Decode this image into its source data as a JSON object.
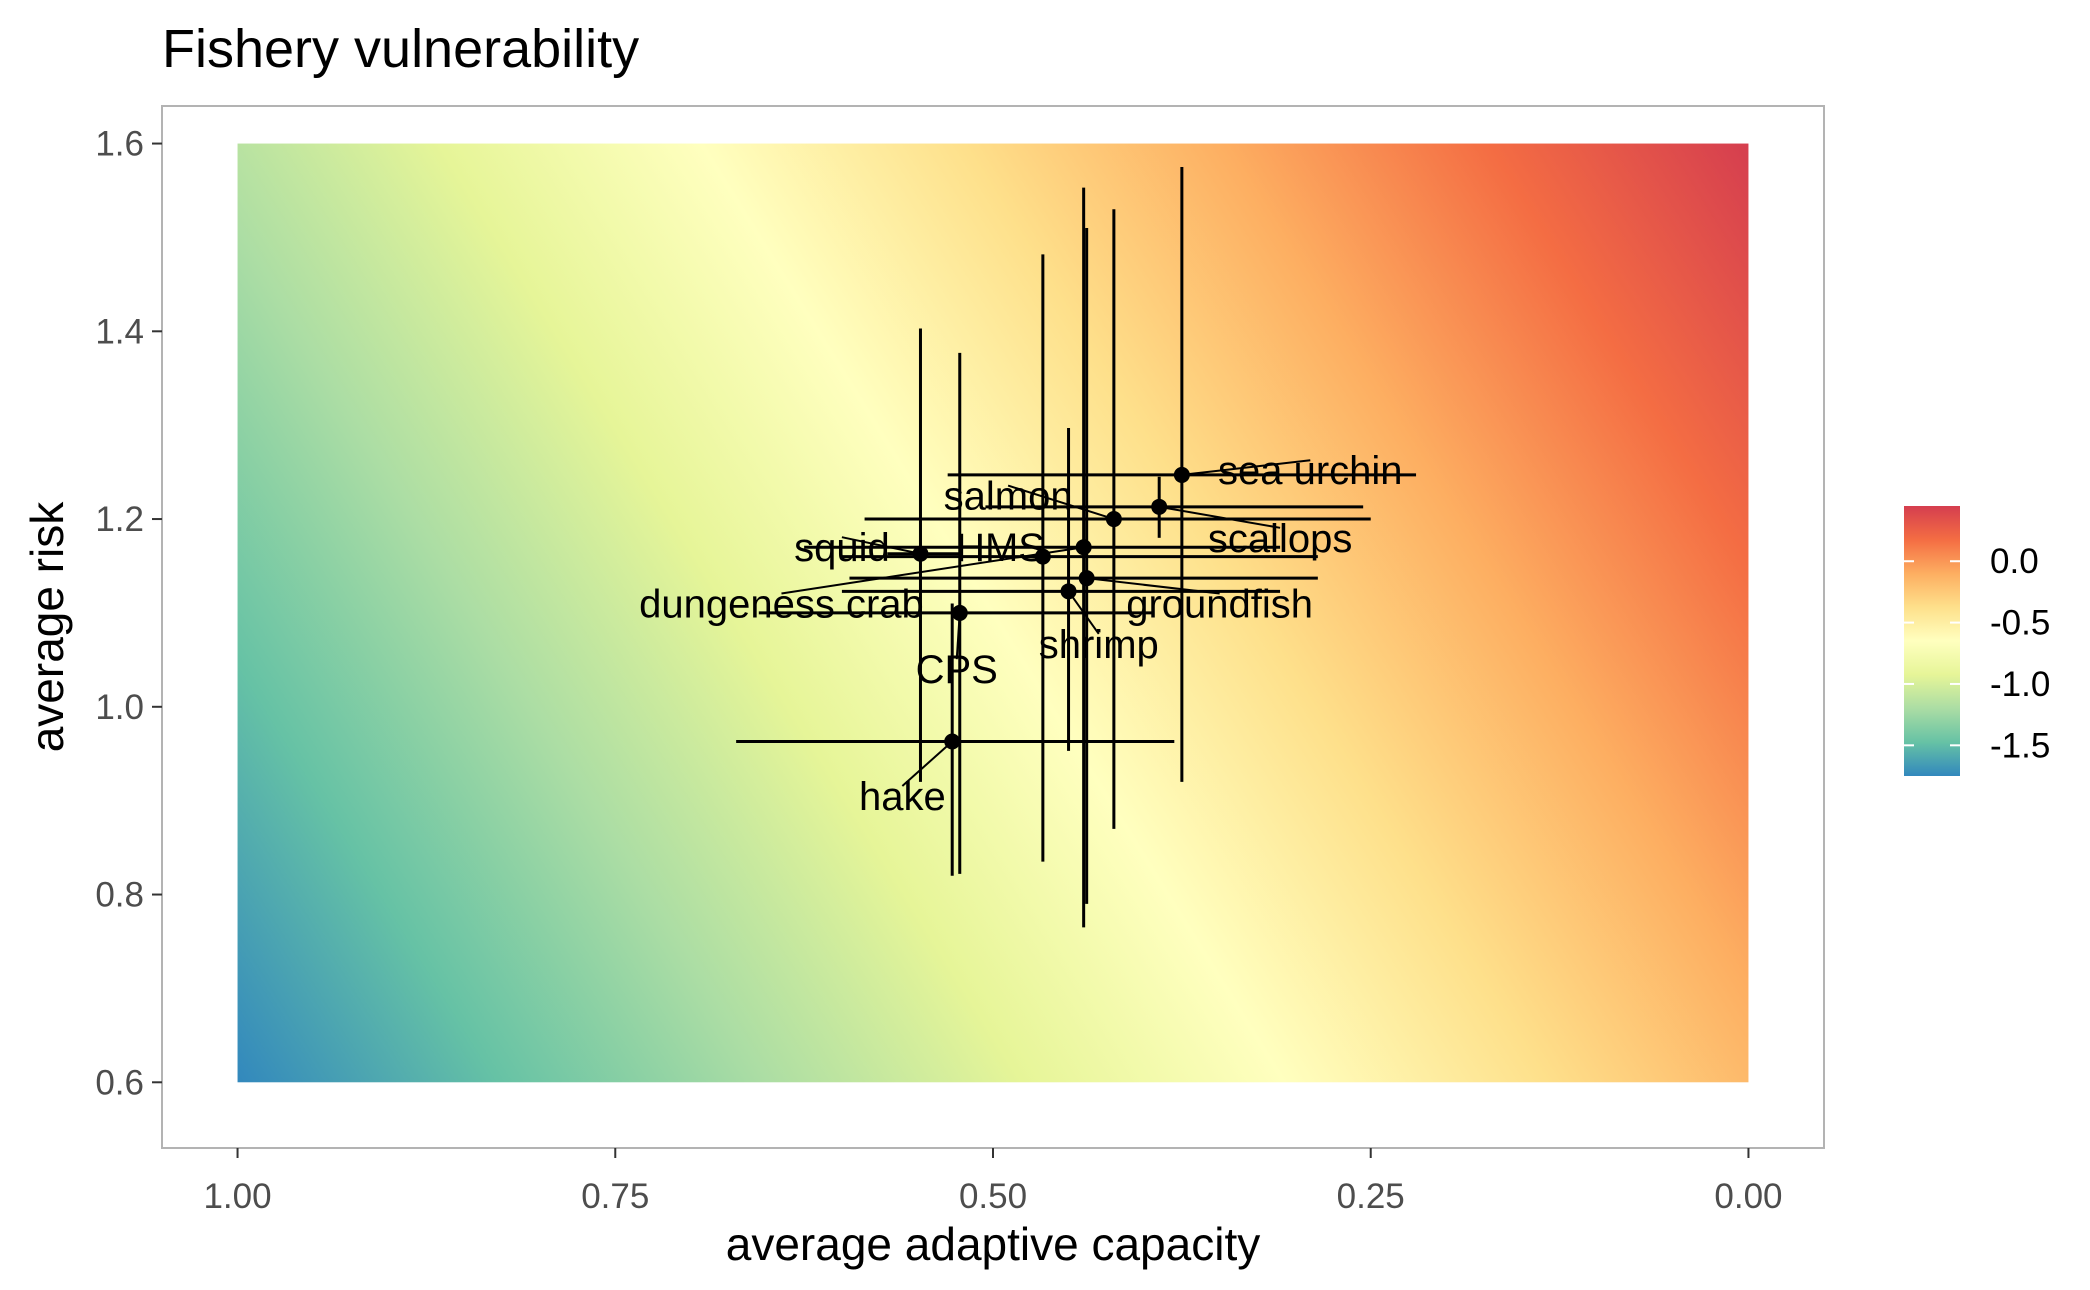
{
  "chart_data": {
    "type": "scatter",
    "title": "Fishery vulnerability",
    "xlabel": "average adaptive capacity",
    "ylabel": "average risk",
    "xlim": [
      1.05,
      -0.05
    ],
    "x_reversed": true,
    "ylim": [
      0.53,
      1.64
    ],
    "xticks": [
      1.0,
      0.75,
      0.5,
      0.25,
      0.0
    ],
    "xtick_labels": [
      "1.00",
      "0.75",
      "0.50",
      "0.25",
      "0.00"
    ],
    "yticks": [
      0.6,
      0.8,
      1.0,
      1.2,
      1.4,
      1.6
    ],
    "ytick_labels": [
      "0.6",
      "0.8",
      "1.0",
      "1.2",
      "1.4",
      "1.6"
    ],
    "grid": true,
    "legend_placement": "right",
    "background_gradient": {
      "x_range": [
        0.0,
        1.0
      ],
      "y_range": [
        0.6,
        1.6
      ],
      "value_at_corners": {
        "x0_ytop": 0.45,
        "x1_ybottom": -1.75
      },
      "colorbar_ticks": [
        0.0,
        -0.5,
        -1.0,
        -1.5
      ],
      "colorbar_tick_labels": [
        "0.0",
        "-0.5",
        "-1.0",
        "-1.5"
      ],
      "colorbar_range": [
        -1.75,
        0.45
      ],
      "palette": [
        "#3288bd",
        "#66c2a5",
        "#abdda4",
        "#e6f598",
        "#ffffbf",
        "#fee08b",
        "#fdae61",
        "#f46d43",
        "#d53e4f"
      ]
    },
    "points": [
      {
        "name": "sea urchin",
        "x": 0.375,
        "y": 1.247,
        "xmin": 0.22,
        "xmax": 0.53,
        "ymin": 0.92,
        "ymax": 1.575,
        "label_x": 0.29,
        "label_y": 1.252
      },
      {
        "name": "salmon",
        "x": 0.42,
        "y": 1.2,
        "xmin": 0.25,
        "xmax": 0.585,
        "ymin": 0.87,
        "ymax": 1.53,
        "label_x": 0.49,
        "label_y": 1.225
      },
      {
        "name": "scallops",
        "x": 0.39,
        "y": 1.213,
        "xmin": 0.255,
        "xmax": 0.505,
        "ymin": 1.18,
        "ymax": 1.245,
        "label_x": 0.31,
        "label_y": 1.18
      },
      {
        "name": "squid",
        "x": 0.548,
        "y": 1.163,
        "xmin": 0.52,
        "xmax": 0.57,
        "ymin": 0.92,
        "ymax": 1.403,
        "label_x": 0.6,
        "label_y": 1.17
      },
      {
        "name": "HMS",
        "x": 0.467,
        "y": 1.16,
        "xmin": 0.285,
        "xmax": 0.6,
        "ymin": 0.835,
        "ymax": 1.482,
        "label_x": 0.495,
        "label_y": 1.17
      },
      {
        "name": "groundfish",
        "x": 0.438,
        "y": 1.137,
        "xmin": 0.285,
        "xmax": 0.595,
        "ymin": 0.79,
        "ymax": 1.51,
        "label_x": 0.35,
        "label_y": 1.11
      },
      {
        "name": "dungeness crab",
        "x": 0.44,
        "y": 1.17,
        "xmin": 0.31,
        "xmax": 0.625,
        "ymin": 0.765,
        "ymax": 1.553,
        "label_x": 0.64,
        "label_y": 1.11
      },
      {
        "name": "shrimp",
        "x": 0.45,
        "y": 1.123,
        "xmin": 0.31,
        "xmax": 0.6,
        "ymin": 0.953,
        "ymax": 1.297,
        "label_x": 0.43,
        "label_y": 1.067
      },
      {
        "name": "CPS",
        "x": 0.522,
        "y": 1.1,
        "xmin": 0.395,
        "xmax": 0.655,
        "ymin": 0.822,
        "ymax": 1.377,
        "label_x": 0.524,
        "label_y": 1.04
      },
      {
        "name": "hake",
        "x": 0.527,
        "y": 0.963,
        "xmin": 0.38,
        "xmax": 0.67,
        "ymin": 0.82,
        "ymax": 1.11,
        "label_x": 0.56,
        "label_y": 0.905
      }
    ]
  }
}
